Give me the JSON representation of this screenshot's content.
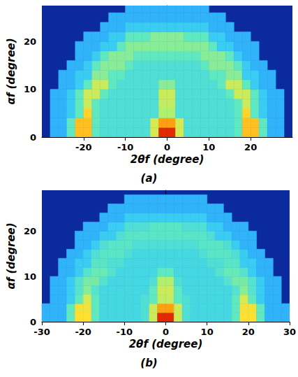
{
  "chart_data": [
    {
      "type": "heatmap",
      "title": "(a)",
      "xlabel": "2θf (degree)",
      "ylabel": "αf (degree)",
      "xlim": [
        -30,
        30
      ],
      "xticks": [
        -20,
        -10,
        0,
        10,
        20
      ],
      "ylim": [
        0,
        27.5
      ],
      "yticks": [
        0,
        10,
        20
      ],
      "grid": false,
      "zlim": [
        0,
        1
      ],
      "x_bins": [
        -30,
        -28,
        -26,
        -24,
        -22,
        -20,
        -18,
        -16,
        -14,
        -12,
        -10,
        -8,
        -6,
        -4,
        -2,
        0,
        2,
        4,
        6,
        8,
        10,
        12,
        14,
        16,
        18,
        20,
        22,
        24,
        26,
        28,
        30
      ],
      "y_bins": [
        0,
        2,
        4,
        6,
        8,
        10,
        12,
        14,
        16,
        18,
        20,
        22,
        24,
        26,
        28
      ],
      "z": [
        [
          null,
          0.33,
          0.33,
          0.45,
          0.75,
          0.75,
          0.45,
          0.42,
          0.42,
          0.42,
          0.42,
          0.42,
          0.42,
          0.62,
          0.95,
          0.95,
          0.62,
          0.42,
          0.42,
          0.42,
          0.42,
          0.42,
          0.42,
          0.45,
          0.75,
          0.75,
          0.45,
          0.33,
          0.33,
          null
        ],
        [
          null,
          0.33,
          0.33,
          0.45,
          0.75,
          0.75,
          0.45,
          0.42,
          0.42,
          0.42,
          0.42,
          0.42,
          0.42,
          0.62,
          0.8,
          0.8,
          0.62,
          0.42,
          0.42,
          0.42,
          0.42,
          0.42,
          0.42,
          0.45,
          0.75,
          0.75,
          0.45,
          0.33,
          0.33,
          null
        ],
        [
          null,
          0.33,
          0.33,
          0.37,
          0.45,
          0.72,
          0.45,
          0.42,
          0.42,
          0.42,
          0.42,
          0.42,
          0.42,
          0.42,
          0.55,
          0.55,
          0.42,
          0.42,
          0.42,
          0.42,
          0.42,
          0.42,
          0.42,
          0.45,
          0.72,
          0.45,
          0.37,
          0.33,
          0.33,
          null
        ],
        [
          null,
          0.33,
          0.33,
          0.37,
          0.45,
          0.6,
          0.45,
          0.42,
          0.42,
          0.42,
          0.42,
          0.42,
          0.42,
          0.42,
          0.58,
          0.58,
          0.42,
          0.42,
          0.42,
          0.42,
          0.42,
          0.42,
          0.42,
          0.45,
          0.6,
          0.45,
          0.37,
          0.33,
          0.33,
          null
        ],
        [
          null,
          0.33,
          0.33,
          0.37,
          0.45,
          0.6,
          0.6,
          0.45,
          0.42,
          0.42,
          0.42,
          0.42,
          0.42,
          0.42,
          0.6,
          0.6,
          0.42,
          0.42,
          0.42,
          0.42,
          0.42,
          0.42,
          0.45,
          0.6,
          0.6,
          0.45,
          0.37,
          0.33,
          0.33,
          null
        ],
        [
          null,
          null,
          0.33,
          0.33,
          0.37,
          0.45,
          0.6,
          0.6,
          0.45,
          0.42,
          0.42,
          0.42,
          0.42,
          0.42,
          0.5,
          0.5,
          0.42,
          0.42,
          0.42,
          0.42,
          0.42,
          0.45,
          0.6,
          0.6,
          0.45,
          0.37,
          0.33,
          0.33,
          null,
          null
        ],
        [
          null,
          null,
          0.33,
          0.33,
          0.37,
          0.37,
          0.5,
          0.5,
          0.45,
          0.45,
          0.42,
          0.42,
          0.42,
          0.42,
          0.42,
          0.42,
          0.42,
          0.42,
          0.42,
          0.42,
          0.45,
          0.45,
          0.5,
          0.5,
          0.37,
          0.37,
          0.33,
          0.33,
          null,
          null
        ],
        [
          null,
          null,
          null,
          0.33,
          0.33,
          0.37,
          0.45,
          0.5,
          0.5,
          0.5,
          0.45,
          0.42,
          0.42,
          0.42,
          0.42,
          0.42,
          0.42,
          0.42,
          0.42,
          0.45,
          0.5,
          0.5,
          0.5,
          0.45,
          0.37,
          0.33,
          0.33,
          null,
          null,
          null
        ],
        [
          null,
          null,
          null,
          null,
          0.33,
          0.33,
          0.37,
          0.45,
          0.5,
          0.5,
          0.5,
          0.45,
          0.45,
          0.45,
          0.45,
          0.45,
          0.45,
          0.45,
          0.45,
          0.5,
          0.5,
          0.5,
          0.45,
          0.37,
          0.33,
          0.33,
          null,
          null,
          null,
          null
        ],
        [
          null,
          null,
          null,
          null,
          0.33,
          0.33,
          0.33,
          0.37,
          0.37,
          0.45,
          0.5,
          0.5,
          0.5,
          0.5,
          0.5,
          0.5,
          0.5,
          0.5,
          0.5,
          0.5,
          0.45,
          0.37,
          0.37,
          0.33,
          0.33,
          0.33,
          null,
          null,
          null,
          null
        ],
        [
          null,
          null,
          null,
          null,
          null,
          0.33,
          0.33,
          0.33,
          0.37,
          0.37,
          0.45,
          0.45,
          0.45,
          0.5,
          0.5,
          0.5,
          0.5,
          0.45,
          0.45,
          0.45,
          0.37,
          0.37,
          0.33,
          0.33,
          0.33,
          null,
          null,
          null,
          null,
          null
        ],
        [
          null,
          null,
          null,
          null,
          null,
          null,
          null,
          0.33,
          0.33,
          0.33,
          0.37,
          0.37,
          0.37,
          0.37,
          0.37,
          0.37,
          0.37,
          0.37,
          0.37,
          0.37,
          0.33,
          0.33,
          0.33,
          null,
          null,
          null,
          null,
          null,
          null,
          null
        ],
        [
          null,
          null,
          null,
          null,
          null,
          null,
          null,
          null,
          0.33,
          0.33,
          0.33,
          0.33,
          0.33,
          0.33,
          0.33,
          0.33,
          0.33,
          0.33,
          0.33,
          0.33,
          0.33,
          0.33,
          null,
          null,
          null,
          null,
          null,
          null,
          null,
          null
        ],
        [
          null,
          null,
          null,
          null,
          null,
          null,
          null,
          null,
          null,
          null,
          0.33,
          0.33,
          0.33,
          0.33,
          0.33,
          0.33,
          0.33,
          0.33,
          0.33,
          0.33,
          null,
          null,
          null,
          null,
          null,
          null,
          null,
          null,
          null,
          null
        ]
      ]
    },
    {
      "type": "heatmap",
      "title": "(b)",
      "xlabel": "2θf (degree)",
      "ylabel": "αf (degree)",
      "xlim": [
        -30,
        30
      ],
      "xticks": [
        -30,
        -20,
        -10,
        0,
        10,
        20,
        30
      ],
      "ylim": [
        0,
        29
      ],
      "yticks": [
        0,
        10,
        20
      ],
      "grid": false,
      "zlim": [
        0,
        1
      ],
      "x_bins": [
        -30,
        -28,
        -26,
        -24,
        -22,
        -20,
        -18,
        -16,
        -14,
        -12,
        -10,
        -8,
        -6,
        -4,
        -2,
        0,
        2,
        4,
        6,
        8,
        10,
        12,
        14,
        16,
        18,
        20,
        22,
        24,
        26,
        28,
        30
      ],
      "y_bins": [
        0,
        2,
        4,
        6,
        8,
        10,
        12,
        14,
        16,
        18,
        20,
        22,
        24,
        26,
        28
      ],
      "z": [
        [
          0.33,
          0.33,
          0.33,
          0.45,
          0.7,
          0.7,
          0.45,
          0.4,
          0.4,
          0.4,
          0.4,
          0.4,
          0.42,
          0.6,
          0.95,
          0.95,
          0.6,
          0.42,
          0.4,
          0.4,
          0.4,
          0.4,
          0.4,
          0.45,
          0.7,
          0.7,
          0.45,
          0.33,
          0.33,
          0.33
        ],
        [
          0.33,
          0.33,
          0.33,
          0.45,
          0.68,
          0.68,
          0.45,
          0.4,
          0.4,
          0.4,
          0.4,
          0.4,
          0.42,
          0.6,
          0.8,
          0.8,
          0.6,
          0.42,
          0.4,
          0.4,
          0.4,
          0.4,
          0.4,
          0.45,
          0.68,
          0.68,
          0.45,
          0.33,
          0.33,
          0.33
        ],
        [
          null,
          0.33,
          0.33,
          0.37,
          0.45,
          0.62,
          0.45,
          0.4,
          0.4,
          0.4,
          0.4,
          0.4,
          0.42,
          0.45,
          0.58,
          0.58,
          0.45,
          0.42,
          0.4,
          0.4,
          0.4,
          0.4,
          0.4,
          0.45,
          0.62,
          0.45,
          0.37,
          0.33,
          0.33,
          null
        ],
        [
          null,
          0.33,
          0.33,
          0.37,
          0.43,
          0.5,
          0.43,
          0.4,
          0.4,
          0.4,
          0.4,
          0.4,
          0.4,
          0.45,
          0.6,
          0.6,
          0.45,
          0.4,
          0.4,
          0.4,
          0.4,
          0.4,
          0.4,
          0.43,
          0.5,
          0.43,
          0.37,
          0.33,
          0.33,
          null
        ],
        [
          null,
          0.33,
          0.33,
          0.37,
          0.43,
          0.48,
          0.48,
          0.43,
          0.4,
          0.4,
          0.4,
          0.4,
          0.4,
          0.42,
          0.55,
          0.55,
          0.42,
          0.4,
          0.4,
          0.4,
          0.4,
          0.4,
          0.43,
          0.48,
          0.48,
          0.43,
          0.37,
          0.33,
          0.33,
          null
        ],
        [
          null,
          null,
          0.33,
          0.33,
          0.37,
          0.43,
          0.46,
          0.46,
          0.43,
          0.4,
          0.4,
          0.4,
          0.4,
          0.4,
          0.45,
          0.45,
          0.4,
          0.4,
          0.4,
          0.4,
          0.4,
          0.43,
          0.46,
          0.46,
          0.43,
          0.37,
          0.33,
          0.33,
          null,
          null
        ],
        [
          null,
          null,
          0.33,
          0.33,
          0.37,
          0.37,
          0.44,
          0.44,
          0.42,
          0.42,
          0.4,
          0.4,
          0.4,
          0.4,
          0.4,
          0.4,
          0.4,
          0.4,
          0.4,
          0.4,
          0.42,
          0.42,
          0.44,
          0.44,
          0.37,
          0.37,
          0.33,
          0.33,
          null,
          null
        ],
        [
          null,
          null,
          null,
          0.33,
          0.33,
          0.37,
          0.42,
          0.44,
          0.44,
          0.44,
          0.42,
          0.4,
          0.4,
          0.4,
          0.4,
          0.4,
          0.4,
          0.4,
          0.4,
          0.42,
          0.44,
          0.44,
          0.44,
          0.42,
          0.37,
          0.33,
          0.33,
          null,
          null,
          null
        ],
        [
          null,
          null,
          null,
          null,
          0.33,
          0.33,
          0.37,
          0.42,
          0.44,
          0.44,
          0.44,
          0.42,
          0.42,
          0.42,
          0.42,
          0.42,
          0.42,
          0.42,
          0.42,
          0.44,
          0.44,
          0.44,
          0.42,
          0.37,
          0.33,
          0.33,
          null,
          null,
          null,
          null
        ],
        [
          null,
          null,
          null,
          null,
          0.33,
          0.33,
          0.33,
          0.37,
          0.37,
          0.42,
          0.44,
          0.44,
          0.44,
          0.44,
          0.44,
          0.44,
          0.44,
          0.44,
          0.44,
          0.44,
          0.42,
          0.37,
          0.37,
          0.33,
          0.33,
          0.33,
          null,
          null,
          null,
          null
        ],
        [
          null,
          null,
          null,
          null,
          null,
          0.33,
          0.33,
          0.33,
          0.37,
          0.37,
          0.42,
          0.42,
          0.42,
          0.44,
          0.44,
          0.44,
          0.44,
          0.42,
          0.42,
          0.42,
          0.37,
          0.37,
          0.33,
          0.33,
          0.33,
          null,
          null,
          null,
          null,
          null
        ],
        [
          null,
          null,
          null,
          null,
          null,
          null,
          null,
          0.33,
          0.33,
          0.33,
          0.37,
          0.37,
          0.37,
          0.37,
          0.37,
          0.37,
          0.37,
          0.37,
          0.37,
          0.37,
          0.33,
          0.33,
          0.33,
          null,
          null,
          null,
          null,
          null,
          null,
          null
        ],
        [
          null,
          null,
          null,
          null,
          null,
          null,
          null,
          null,
          0.33,
          0.33,
          0.33,
          0.33,
          0.33,
          0.33,
          0.33,
          0.33,
          0.33,
          0.33,
          0.33,
          0.33,
          0.33,
          0.33,
          null,
          null,
          null,
          null,
          null,
          null,
          null,
          null
        ],
        [
          null,
          null,
          null,
          null,
          null,
          null,
          null,
          null,
          null,
          null,
          0.33,
          0.33,
          0.33,
          0.33,
          0.33,
          0.33,
          0.33,
          0.33,
          0.33,
          0.33,
          null,
          null,
          null,
          null,
          null,
          null,
          null,
          null,
          null,
          null
        ]
      ]
    }
  ]
}
